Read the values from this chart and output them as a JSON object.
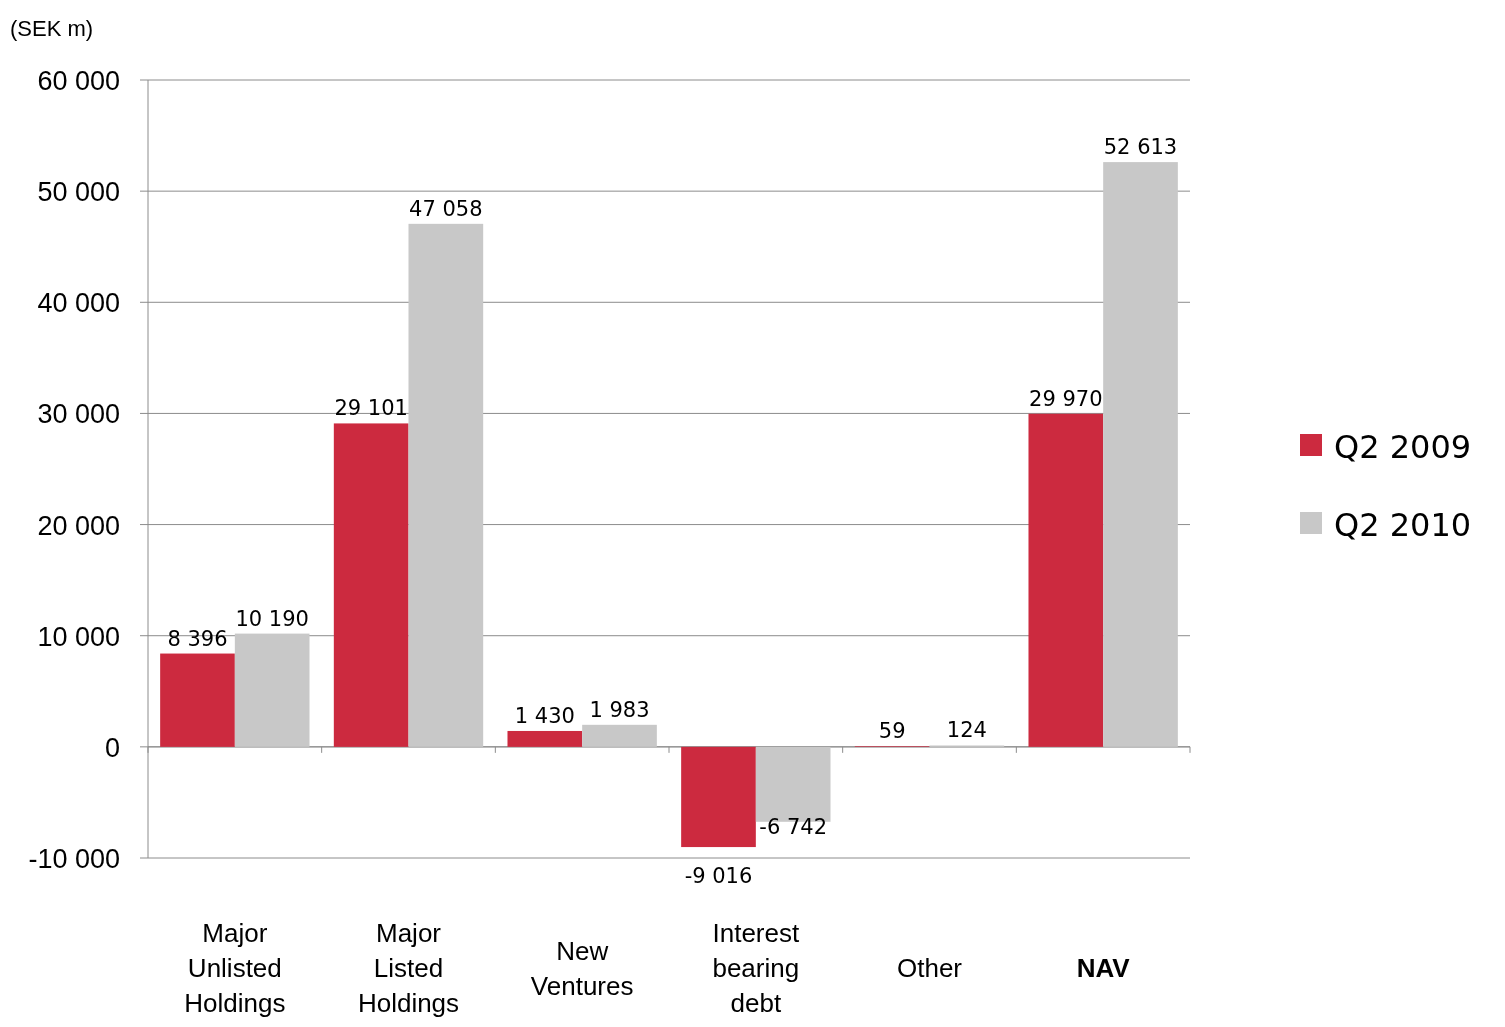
{
  "chart_data": {
    "type": "bar",
    "ylabel": "(SEK m)",
    "categories": [
      "Major Unlisted Holdings",
      "Major Listed Holdings",
      "New Ventures",
      "Interest bearing debt",
      "Other",
      "NAV"
    ],
    "series": [
      {
        "name": "Q2 2009",
        "color": "#cc2a3f",
        "values": [
          8396,
          29101,
          1430,
          -9016,
          59,
          29970
        ],
        "value_labels": [
          "8 396",
          "29 101",
          "1 430",
          "-9 016",
          "59",
          "29 970"
        ]
      },
      {
        "name": "Q2 2010",
        "color": "#c8c8c8",
        "values": [
          10190,
          47058,
          1983,
          -6742,
          124,
          52613
        ],
        "value_labels": [
          "10 190",
          "47 058",
          "1 983",
          "-6 742",
          "124",
          "52 613"
        ]
      }
    ],
    "ylim": [
      -10000,
      60000
    ],
    "yticks": [
      {
        "value": -10000,
        "label": "-10 000"
      },
      0,
      {
        "value": 10000,
        "label": "10 000"
      },
      {
        "value": 20000,
        "label": "20 000"
      },
      {
        "value": 30000,
        "label": "30 000"
      },
      {
        "value": 40000,
        "label": "40 000"
      },
      {
        "value": 50000,
        "label": "50 000"
      },
      {
        "value": 60000,
        "label": "60 000"
      }
    ],
    "grid": "y",
    "legend": "right"
  }
}
